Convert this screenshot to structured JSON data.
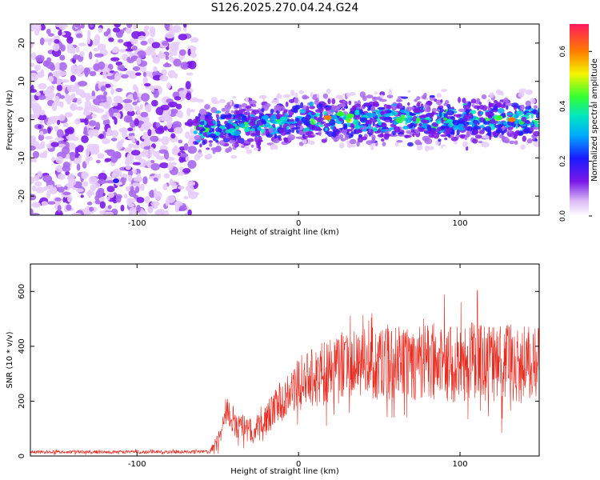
{
  "figure_title": "S126.2025.270.04.24.G24",
  "colors": {
    "snr_line": "#e8291e",
    "axis": "#000000"
  },
  "chart_data": [
    {
      "type": "heatmap",
      "title": "S126.2025.270.04.24.G24",
      "xlabel": "Height of straight line (km)",
      "ylabel": "Frequency (Hz)",
      "xlim": [
        -166,
        149
      ],
      "ylim": [
        -25,
        25
      ],
      "x_ticks": [
        -100,
        0,
        100
      ],
      "x_tick_labels": [
        "-100",
        "0",
        "100"
      ],
      "y_ticks": [
        -20,
        -10,
        0,
        10,
        20
      ],
      "y_tick_labels": [
        "-20",
        "-10",
        "0",
        "10",
        "20"
      ],
      "colorbar": {
        "label": "Normalized spectral amplitude",
        "range": [
          0.0,
          0.7
        ],
        "ticks": [
          0.0,
          0.2,
          0.4,
          0.6
        ],
        "tick_labels": [
          "0.0",
          "0.2",
          "0.4",
          "0.6"
        ]
      },
      "noise_region_x": [
        -166,
        -64
      ],
      "signal_band_center_hz": 0,
      "signal_band_halfwidth_hz": 5,
      "hot_spots": [
        {
          "x": 18,
          "y": 0.5,
          "value": 0.62
        },
        {
          "x": 26,
          "y": 1.5,
          "value": 0.5
        },
        {
          "x": 32,
          "y": 1,
          "value": 0.45
        },
        {
          "x": 132,
          "y": 0,
          "value": 0.68
        },
        {
          "x": 124,
          "y": 0.5,
          "value": 0.45
        }
      ]
    },
    {
      "type": "line",
      "xlabel": "Height of straight line (km)",
      "ylabel": "SNR (10 * v/v)",
      "xlim": [
        -166,
        149
      ],
      "ylim": [
        0,
        700
      ],
      "x_ticks": [
        -100,
        0,
        100
      ],
      "x_tick_labels": [
        "-100",
        "0",
        "100"
      ],
      "y_ticks": [
        0,
        200,
        400,
        600
      ],
      "y_tick_labels": [
        "0",
        "200",
        "400",
        "600"
      ],
      "series": [
        {
          "name": "SNR",
          "x": [
            -166,
            -100,
            -55,
            -52,
            -48,
            -45,
            -42,
            -40,
            -38,
            -35,
            -32,
            -30,
            -28,
            -25,
            -22,
            -20,
            -15,
            -10,
            -5,
            0,
            5,
            10,
            15,
            20,
            25,
            30,
            40,
            50,
            60,
            70,
            80,
            90,
            100,
            110,
            120,
            130,
            140,
            149
          ],
          "mean": [
            15,
            15,
            15,
            40,
            80,
            120,
            150,
            120,
            110,
            120,
            90,
            100,
            80,
            110,
            95,
            130,
            170,
            200,
            230,
            260,
            280,
            290,
            300,
            310,
            320,
            330,
            330,
            340,
            340,
            330,
            350,
            340,
            330,
            350,
            330,
            340,
            335,
            340
          ],
          "spread": [
            6,
            6,
            6,
            20,
            40,
            50,
            60,
            50,
            50,
            55,
            45,
            50,
            40,
            50,
            50,
            60,
            70,
            80,
            90,
            100,
            110,
            115,
            120,
            125,
            130,
            130,
            135,
            140,
            140,
            140,
            140,
            140,
            140,
            145,
            140,
            140,
            140,
            140
          ]
        }
      ]
    }
  ]
}
